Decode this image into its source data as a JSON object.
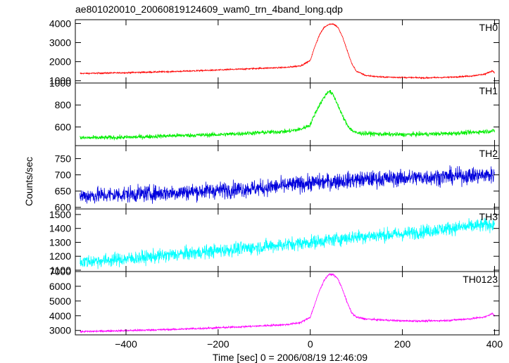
{
  "chart_data": {
    "type": "line",
    "title": "ae801020010_20060819124609_wam0_trn_4band_long.qdp",
    "xlabel": "Time [sec] 0 = 2006/08/19 12:46:09",
    "ylabel": "Counts/sec",
    "xlim": [
      -510,
      410
    ],
    "xticks": [
      -400,
      -200,
      0,
      200,
      400
    ],
    "grid": false,
    "panels": [
      {
        "name": "TH0",
        "color": "#ff0000",
        "ylim": [
          880,
          4200
        ],
        "yticks": [
          1000,
          2000,
          3000,
          4000
        ],
        "noise": 25,
        "x": [
          -500,
          -400,
          -300,
          -200,
          -100,
          -50,
          -20,
          0,
          10,
          20,
          30,
          40,
          50,
          60,
          70,
          80,
          90,
          100,
          120,
          150,
          200,
          250,
          300,
          350,
          380,
          395,
          400
        ],
        "y": [
          1380,
          1420,
          1480,
          1560,
          1660,
          1700,
          1790,
          2060,
          2800,
          3400,
          3800,
          3960,
          3980,
          3800,
          3300,
          2600,
          1900,
          1500,
          1280,
          1200,
          1170,
          1150,
          1180,
          1250,
          1350,
          1520,
          1430
        ]
      },
      {
        "name": "TH1",
        "color": "#00ee00",
        "ylim": [
          430,
          1000
        ],
        "yticks": [
          600,
          800,
          1000
        ],
        "noise": 14,
        "x": [
          -500,
          -400,
          -300,
          -200,
          -100,
          -50,
          -20,
          0,
          10,
          20,
          30,
          40,
          50,
          60,
          70,
          80,
          90,
          100,
          150,
          200,
          250,
          300,
          350,
          400
        ],
        "y": [
          500,
          505,
          520,
          530,
          550,
          560,
          580,
          620,
          720,
          800,
          870,
          930,
          890,
          800,
          700,
          620,
          570,
          545,
          535,
          530,
          535,
          540,
          550,
          565
        ]
      },
      {
        "name": "TH2",
        "color": "#0000dd",
        "ylim": [
          595,
          790
        ],
        "yticks": [
          600,
          650,
          700,
          750
        ],
        "noise": 18,
        "x": [
          -500,
          -300,
          -100,
          0,
          100,
          200,
          300,
          400
        ],
        "y": [
          635,
          645,
          660,
          675,
          685,
          690,
          695,
          700
        ]
      },
      {
        "name": "TH3",
        "color": "#00ffff",
        "ylim": [
          1090,
          1540
        ],
        "yticks": [
          1100,
          1200,
          1300,
          1400,
          1500
        ],
        "noise": 35,
        "x": [
          -500,
          -400,
          -300,
          -200,
          -100,
          0,
          100,
          200,
          300,
          400
        ],
        "y": [
          1160,
          1180,
          1210,
          1240,
          1270,
          1300,
          1340,
          1360,
          1400,
          1430
        ]
      },
      {
        "name": "TH0123",
        "color": "#ff00ff",
        "ylim": [
          2700,
          7000
        ],
        "yticks": [
          3000,
          4000,
          5000,
          6000,
          7000
        ],
        "noise": 45,
        "x": [
          -500,
          -400,
          -300,
          -200,
          -100,
          -50,
          -20,
          0,
          10,
          20,
          30,
          40,
          50,
          60,
          70,
          80,
          90,
          100,
          120,
          150,
          200,
          250,
          300,
          350,
          380,
          395,
          400
        ],
        "y": [
          2920,
          2990,
          3070,
          3180,
          3320,
          3400,
          3550,
          3900,
          4800,
          5700,
          6400,
          6800,
          6800,
          6500,
          5800,
          4900,
          4200,
          3900,
          3780,
          3720,
          3650,
          3640,
          3680,
          3800,
          3920,
          4150,
          4000
        ]
      }
    ]
  }
}
